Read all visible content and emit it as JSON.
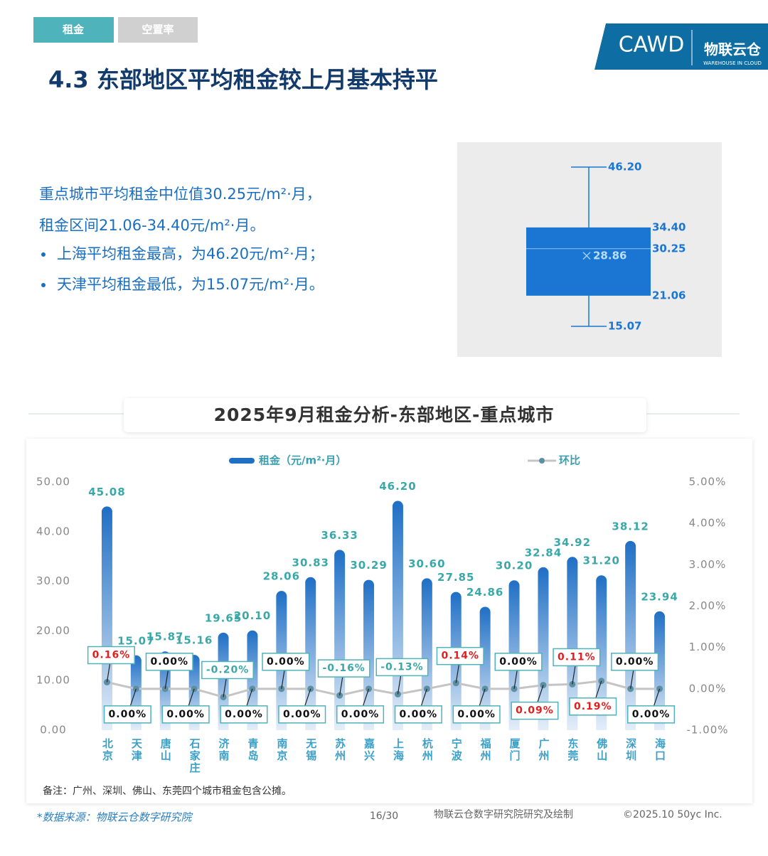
{
  "header": {
    "tabs": [
      "租金",
      "空置率"
    ],
    "logo": {
      "brand": "CAWD",
      "name": "物联云仓",
      "tagline": "WAREHOUSE IN CLOUD"
    },
    "title": "4.3 东部地区平均租金较上月基本持平"
  },
  "summary": {
    "lines": [
      "重点城市平均租金中位值30.25元/m²·月，",
      "租金区间21.06-34.40元/m²·月。"
    ],
    "bullets": [
      "上海平均租金最高，为46.20元/m²·月；",
      "天津平均租金最低，为15.07元/m²·月。"
    ]
  },
  "chart_data": [
    {
      "type": "bar",
      "title": "2025年9月租金分析-东部地区-重点城市",
      "categories": [
        "北京",
        "天津",
        "唐山",
        "石家庄",
        "济南",
        "青岛",
        "南京",
        "无锡",
        "苏州",
        "嘉兴",
        "上海",
        "杭州",
        "宁波",
        "福州",
        "厦门",
        "广州",
        "东莞",
        "佛山",
        "深圳",
        "海口"
      ],
      "series": [
        {
          "name": "租金（元/m²·月）",
          "color": "#1f6fc5",
          "values": [
            45.08,
            15.07,
            15.87,
            15.16,
            19.65,
            20.1,
            28.06,
            30.83,
            36.33,
            30.29,
            46.2,
            30.6,
            27.85,
            24.86,
            30.2,
            32.84,
            34.92,
            31.2,
            38.12,
            23.94
          ],
          "value_labels": [
            "45.08",
            "15.07",
            "15.87",
            "15.16",
            "19.65",
            "20.10",
            "28.06",
            "30.83",
            "36.33",
            "30.29",
            "46.20",
            "30.60",
            "27.85",
            "24.86",
            "30.20",
            "32.84",
            "34.92",
            "31.20",
            "38.12",
            "23.94"
          ]
        },
        {
          "name": "环比",
          "type": "line",
          "axis": "y2",
          "color": "#c4c4c4",
          "marker_color": "#5b8fa3",
          "values": [
            0.16,
            0,
            0,
            0,
            -0.2,
            0,
            0,
            0,
            -0.16,
            0,
            -0.13,
            0,
            0.14,
            0,
            0,
            0.09,
            0.11,
            0.19,
            0,
            0
          ],
          "value_labels": [
            "0.16%",
            "0.00%",
            "0.00%",
            "0.00%",
            "-0.20%",
            "0.00%",
            "0.00%",
            "0.00%",
            "-0.16%",
            "0.00%",
            "-0.13%",
            "0.00%",
            "0.14%",
            "0.00%",
            "0.00%",
            "0.09%",
            "0.11%",
            "0.19%",
            "0.00%",
            "0.00%"
          ]
        }
      ],
      "ylim": [
        0,
        50
      ],
      "yticks": [
        {
          "value": 0,
          "label": "0.00"
        },
        {
          "value": 10,
          "label": "10.00"
        },
        {
          "value": 20,
          "label": "20.00"
        },
        {
          "value": 30,
          "label": "30.00"
        },
        {
          "value": 40,
          "label": "40.00"
        },
        {
          "value": 50,
          "label": "50.00"
        }
      ],
      "y2lim": [
        -1,
        5
      ],
      "y2ticks": [
        {
          "value": -1,
          "label": "-1.00%"
        },
        {
          "value": 0,
          "label": "0.00%"
        },
        {
          "value": 1,
          "label": "1.00%"
        },
        {
          "value": 2,
          "label": "2.00%"
        },
        {
          "value": 3,
          "label": "3.00%"
        },
        {
          "value": 4,
          "label": "4.00%"
        },
        {
          "value": 5,
          "label": "5.00%"
        }
      ],
      "note": "备注：广州、深圳、佛山、东莞四个城市租金包含公摊。"
    },
    {
      "type": "box",
      "color": "#1a76d2",
      "stats": {
        "min": 15.07,
        "q1": 21.06,
        "median": 30.25,
        "q3": 34.4,
        "max": 46.2,
        "mean": 28.86
      },
      "value_labels": {
        "min": "15.07",
        "q1": "21.06",
        "median": "30.25",
        "q3": "34.40",
        "max": "46.20",
        "mean": "28.86"
      }
    }
  ],
  "footer": {
    "source": "*数据来源：物联云仓数字研究院",
    "page": "16/30",
    "credit": "物联云仓数字研究院研究及绘制",
    "copyright": "©2025.10 50yc Inc."
  }
}
